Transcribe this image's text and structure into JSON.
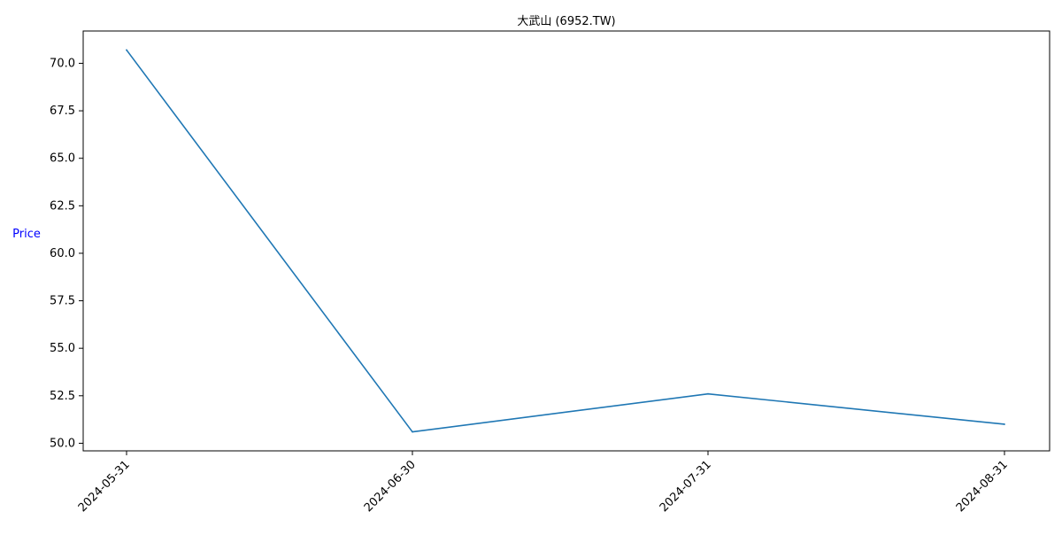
{
  "chart_data": {
    "type": "line",
    "title": "大武山 (6952.TW)",
    "xlabel": "",
    "ylabel": "Price",
    "x": [
      "2024-05-31",
      "2024-06-30",
      "2024-07-31",
      "2024-08-31"
    ],
    "series": [
      {
        "values": [
          70.7,
          50.6,
          52.6,
          51.0
        ]
      }
    ],
    "yticks": [
      "50.0",
      "52.5",
      "55.0",
      "57.5",
      "60.0",
      "62.5",
      "65.0",
      "67.5",
      "70.0"
    ],
    "ylim": [
      49.6,
      71.7
    ],
    "grid": false,
    "line_color": "#1f77b4",
    "ylabel_color": "#0000ff"
  }
}
